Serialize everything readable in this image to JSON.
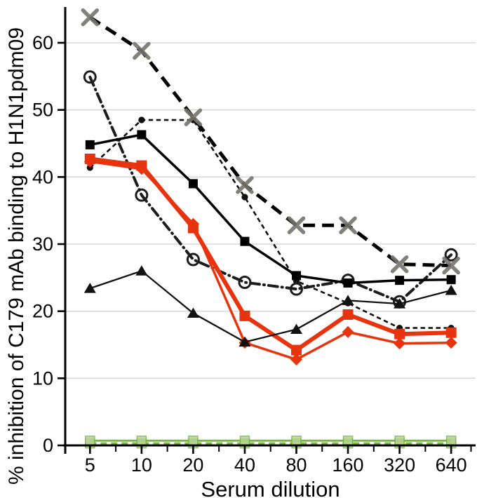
{
  "figure": {
    "background": "#ffffff",
    "gridline_color": "#d9d9d9",
    "axis_color": "#000000"
  },
  "chart_data": {
    "type": "line",
    "title": "",
    "xlabel": "Serum dilution",
    "ylabel": "% inhibition of C179 mAb binding to H1N1pdm09",
    "x_scale": "log2-categorical",
    "categories": [
      "5",
      "10",
      "20",
      "40",
      "80",
      "160",
      "320",
      "640"
    ],
    "yticks": [
      0,
      10,
      20,
      30,
      40,
      50,
      60
    ],
    "ylim": [
      0,
      65
    ],
    "grid": "horizontal",
    "legend": "none",
    "series": [
      {
        "name": "green-dashed-square",
        "marker": "green-square",
        "line": "dashed",
        "color": "#7ab648",
        "marker_fill": "#b5d593",
        "values": [
          0.3,
          0.3,
          0.3,
          0.3,
          0.3,
          0.3,
          0.3,
          0.3
        ]
      },
      {
        "name": "green-solid-square",
        "marker": "green-square",
        "line": "solid-green",
        "color": "#7ab648",
        "marker_fill": "#b5d593",
        "values": [
          0.7,
          0.7,
          0.7,
          0.7,
          0.7,
          0.7,
          0.7,
          0.7
        ]
      },
      {
        "name": "black-thin-dashed-small-dot",
        "marker": "small-filled-circle",
        "line": "dashed-thin",
        "color": "#111111",
        "values": [
          41.4,
          48.5,
          48.5,
          37.0,
          24.5,
          21.2,
          17.5,
          17.5
        ]
      },
      {
        "name": "black-dash-dot-open-circle",
        "marker": "open-circle",
        "line": "dash-dot",
        "color": "#1c1c1c",
        "values": [
          54.9,
          37.3,
          27.7,
          24.3,
          23.3,
          24.6,
          21.4,
          28.4
        ]
      },
      {
        "name": "black-solid-filled-square",
        "marker": "filled-square",
        "line": "solid-medium",
        "color": "#000000",
        "values": [
          44.8,
          46.3,
          39.0,
          30.4,
          25.3,
          24.2,
          24.6,
          24.7
        ]
      },
      {
        "name": "black-bold-dashed-x",
        "marker": "x-cross",
        "line": "dashed-bold",
        "color": "#000000",
        "marker_color": "#74746c",
        "values": [
          63.8,
          58.8,
          48.9,
          38.8,
          32.8,
          32.8,
          27.0,
          26.8
        ]
      },
      {
        "name": "red-bold-filled-square",
        "marker": "filled-square-large",
        "line": "solid-bold",
        "color": "#e8330f",
        "values": [
          42.7,
          41.7,
          32.4,
          19.3,
          14.2,
          19.5,
          16.6,
          16.8
        ]
      },
      {
        "name": "red-filled-diamond",
        "marker": "filled-diamond",
        "line": "solid-medium",
        "color": "#e8330f",
        "values": [
          42.3,
          41.2,
          33.0,
          15.3,
          12.8,
          16.9,
          15.2,
          15.3
        ]
      },
      {
        "name": "black-thin-solid-triangle",
        "marker": "filled-triangle",
        "line": "solid-thin",
        "color": "#111111",
        "values": [
          23.4,
          26.0,
          19.7,
          15.4,
          17.3,
          21.6,
          21.1,
          23.1
        ]
      }
    ]
  }
}
